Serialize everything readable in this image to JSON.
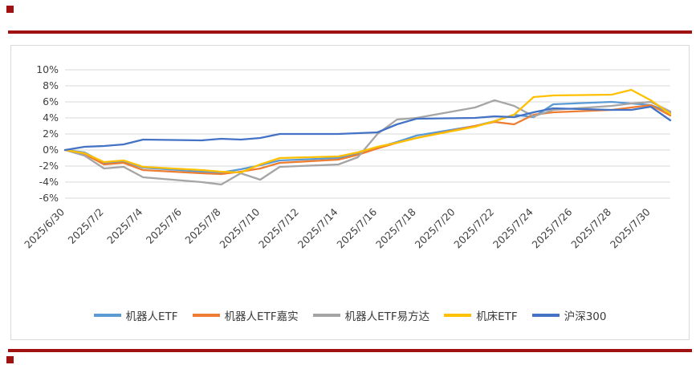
{
  "page": {
    "accent_red": "#A01212",
    "background": "#FFFFFF",
    "grid_color": "#D9D9D9",
    "axis_text_color": "#3F3F3F"
  },
  "chart_data": {
    "type": "line",
    "title": "",
    "xlabel": "",
    "ylabel": "",
    "grid": true,
    "legend_position": "bottom",
    "ylim": [
      -6,
      10
    ],
    "y_tick_step": 2,
    "x_total_days": 31,
    "x_dates": [
      "2025/6/30",
      "2025/7/1",
      "2025/7/2",
      "2025/7/3",
      "2025/7/4",
      "2025/7/7",
      "2025/7/8",
      "2025/7/9",
      "2025/7/10",
      "2025/7/11",
      "2025/7/14",
      "2025/7/15",
      "2025/7/16",
      "2025/7/17",
      "2025/7/18",
      "2025/7/21",
      "2025/7/22",
      "2025/7/23",
      "2025/7/24",
      "2025/7/25",
      "2025/7/28",
      "2025/7/29",
      "2025/7/30",
      "2025/7/31"
    ],
    "x_day_offsets": [
      0,
      1,
      2,
      3,
      4,
      7,
      8,
      9,
      10,
      11,
      14,
      15,
      16,
      17,
      18,
      21,
      22,
      23,
      24,
      25,
      28,
      29,
      30,
      31
    ],
    "x_ticks": [
      {
        "day": 0,
        "label": "2025/6/30"
      },
      {
        "day": 2,
        "label": "2025/7/2"
      },
      {
        "day": 4,
        "label": "2025/7/4"
      },
      {
        "day": 6,
        "label": "2025/7/6"
      },
      {
        "day": 8,
        "label": "2025/7/8"
      },
      {
        "day": 10,
        "label": "2025/7/10"
      },
      {
        "day": 12,
        "label": "2025/7/12"
      },
      {
        "day": 14,
        "label": "2025/7/14"
      },
      {
        "day": 16,
        "label": "2025/7/16"
      },
      {
        "day": 18,
        "label": "2025/7/18"
      },
      {
        "day": 20,
        "label": "2025/7/20"
      },
      {
        "day": 22,
        "label": "2025/7/22"
      },
      {
        "day": 24,
        "label": "2025/7/24"
      },
      {
        "day": 26,
        "label": "2025/7/26"
      },
      {
        "day": 28,
        "label": "2025/7/28"
      },
      {
        "day": 30,
        "label": "2025/7/30"
      }
    ],
    "y_ticks": [
      {
        "value": 10,
        "label": "10%"
      },
      {
        "value": 8,
        "label": "8%"
      },
      {
        "value": 6,
        "label": "6%"
      },
      {
        "value": 4,
        "label": "4%"
      },
      {
        "value": 2,
        "label": "2%"
      },
      {
        "value": 0,
        "label": "0%"
      },
      {
        "value": -2,
        "label": "-2%"
      },
      {
        "value": -4,
        "label": "-4%"
      },
      {
        "value": -6,
        "label": "-6%"
      }
    ],
    "series": [
      {
        "name": "机器人ETF",
        "color": "#5B9BD5",
        "values": [
          0,
          -0.3,
          -1.6,
          -1.4,
          -2.2,
          -2.7,
          -2.8,
          -2.4,
          -1.9,
          -1.3,
          -1.0,
          -0.5,
          0.3,
          1.0,
          1.8,
          3.0,
          3.6,
          4.4,
          4.1,
          5.7,
          6.0,
          5.8,
          5.6,
          4.7
        ]
      },
      {
        "name": "机器人ETF嘉实",
        "color": "#ED7D31",
        "values": [
          0,
          -0.5,
          -1.8,
          -1.6,
          -2.5,
          -2.9,
          -3.0,
          -2.7,
          -2.3,
          -1.6,
          -1.2,
          -0.6,
          0.2,
          0.9,
          1.5,
          3.0,
          3.5,
          3.2,
          4.4,
          4.7,
          5.0,
          5.3,
          5.6,
          4.3
        ]
      },
      {
        "name": "机器人ETF易方达",
        "color": "#A5A5A5",
        "values": [
          0,
          -0.7,
          -2.3,
          -2.1,
          -3.4,
          -4.0,
          -4.3,
          -2.9,
          -3.7,
          -2.1,
          -1.8,
          -0.9,
          2.0,
          3.8,
          4.0,
          5.3,
          6.2,
          5.5,
          4.2,
          5.0,
          5.5,
          5.8,
          6.0,
          4.8
        ]
      },
      {
        "name": "机床ETF",
        "color": "#FFC000",
        "values": [
          0,
          -0.4,
          -1.5,
          -1.3,
          -2.1,
          -2.5,
          -2.7,
          -2.8,
          -1.8,
          -1.0,
          -0.8,
          -0.3,
          0.4,
          0.9,
          1.5,
          2.9,
          3.6,
          4.4,
          6.6,
          6.8,
          6.9,
          7.5,
          6.2,
          4.5
        ]
      },
      {
        "name": "沪深300",
        "color": "#4472C4",
        "values": [
          0,
          0.4,
          0.5,
          0.7,
          1.3,
          1.2,
          1.4,
          1.3,
          1.5,
          2.0,
          2.0,
          2.1,
          2.2,
          3.2,
          3.9,
          4.0,
          4.2,
          4.1,
          4.7,
          5.2,
          5.0,
          5.0,
          5.4,
          3.7
        ]
      }
    ]
  }
}
